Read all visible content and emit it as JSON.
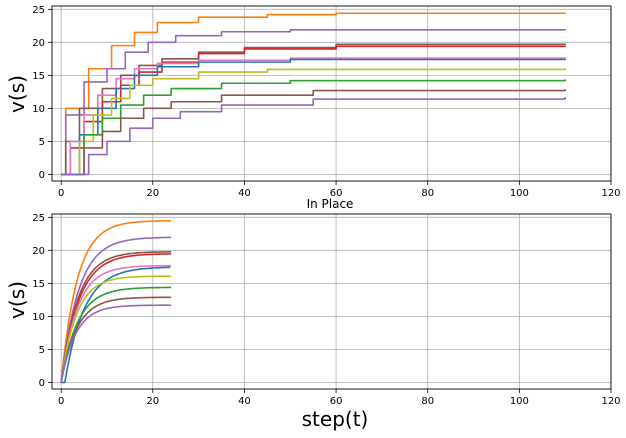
{
  "chart_data": [
    {
      "type": "line",
      "title": "",
      "xlabel": "",
      "ylabel": "v(s)",
      "xlim": [
        -2,
        120
      ],
      "ylim": [
        -1,
        25.5
      ],
      "xticks": [
        0,
        20,
        40,
        60,
        80,
        100,
        120
      ],
      "yticks": [
        0,
        5,
        10,
        15,
        20,
        25
      ],
      "grid": true,
      "legend": "none",
      "mode": "step",
      "series": [
        {
          "color": "#ff7f0e",
          "values": [
            [
              0,
              0
            ],
            [
              1,
              10
            ],
            [
              5,
              10
            ],
            [
              6,
              16
            ],
            [
              10,
              16
            ],
            [
              11,
              19.5
            ],
            [
              15,
              19.5
            ],
            [
              16,
              21.5
            ],
            [
              20,
              21.5
            ],
            [
              21,
              23
            ],
            [
              28,
              23
            ],
            [
              30,
              23.8
            ],
            [
              45,
              24.2
            ],
            [
              60,
              24.4
            ],
            [
              110,
              24.5
            ]
          ]
        },
        {
          "color": "#9467bd",
          "values": [
            [
              0,
              0
            ],
            [
              1,
              9
            ],
            [
              4,
              9
            ],
            [
              5,
              14
            ],
            [
              9,
              14
            ],
            [
              10,
              16
            ],
            [
              13,
              16
            ],
            [
              14,
              18.5
            ],
            [
              18,
              18.5
            ],
            [
              19,
              20
            ],
            [
              24,
              20
            ],
            [
              25,
              21
            ],
            [
              35,
              21.6
            ],
            [
              50,
              21.9
            ],
            [
              110,
              22
            ]
          ]
        },
        {
          "color": "#8c564b",
          "values": [
            [
              0,
              0
            ],
            [
              1,
              5
            ],
            [
              3,
              5
            ],
            [
              4,
              10
            ],
            [
              8,
              10
            ],
            [
              9,
              13
            ],
            [
              12,
              13
            ],
            [
              13,
              15
            ],
            [
              16,
              15
            ],
            [
              17,
              16.5
            ],
            [
              21,
              16.5
            ],
            [
              22,
              17.5
            ],
            [
              30,
              18.5
            ],
            [
              40,
              19.2
            ],
            [
              60,
              19.7
            ],
            [
              110,
              19.8
            ]
          ]
        },
        {
          "color": "#d62728",
          "values": [
            [
              0,
              0
            ],
            [
              2,
              4
            ],
            [
              4,
              4
            ],
            [
              5,
              8
            ],
            [
              8,
              8
            ],
            [
              9,
              11
            ],
            [
              12,
              11
            ],
            [
              13,
              13.5
            ],
            [
              16,
              13.5
            ],
            [
              17,
              15.5
            ],
            [
              21,
              15.5
            ],
            [
              22,
              17
            ],
            [
              30,
              18.3
            ],
            [
              40,
              19
            ],
            [
              60,
              19.4
            ],
            [
              110,
              19.5
            ]
          ]
        },
        {
          "color": "#e377c2",
          "values": [
            [
              0,
              0
            ],
            [
              2,
              5
            ],
            [
              4,
              5
            ],
            [
              5,
              9
            ],
            [
              7,
              9
            ],
            [
              8,
              12
            ],
            [
              11,
              12
            ],
            [
              12,
              14.5
            ],
            [
              15,
              14.5
            ],
            [
              16,
              16
            ],
            [
              20,
              16
            ],
            [
              21,
              16.8
            ],
            [
              30,
              17.3
            ],
            [
              50,
              17.6
            ],
            [
              110,
              17.7
            ]
          ]
        },
        {
          "color": "#1f77b4",
          "values": [
            [
              0,
              0
            ],
            [
              3,
              0
            ],
            [
              4,
              6
            ],
            [
              7,
              6
            ],
            [
              8,
              10
            ],
            [
              11,
              10
            ],
            [
              12,
              13
            ],
            [
              15,
              13
            ],
            [
              16,
              15
            ],
            [
              20,
              15
            ],
            [
              21,
              16.3
            ],
            [
              30,
              17
            ],
            [
              50,
              17.4
            ],
            [
              110,
              17.5
            ]
          ]
        },
        {
          "color": "#bcbd22",
          "values": [
            [
              0,
              0
            ],
            [
              3,
              0
            ],
            [
              4,
              5
            ],
            [
              6,
              5
            ],
            [
              7,
              9
            ],
            [
              10,
              9
            ],
            [
              11,
              11.5
            ],
            [
              14,
              11.5
            ],
            [
              15,
              13.5
            ],
            [
              19,
              13.5
            ],
            [
              20,
              14.5
            ],
            [
              30,
              15.5
            ],
            [
              45,
              15.9
            ],
            [
              110,
              16.1
            ]
          ]
        },
        {
          "color": "#2ca02c",
          "values": [
            [
              0,
              0
            ],
            [
              4,
              0
            ],
            [
              5,
              6
            ],
            [
              8,
              6
            ],
            [
              9,
              8.5
            ],
            [
              12,
              8.5
            ],
            [
              13,
              10.5
            ],
            [
              17,
              10.5
            ],
            [
              18,
              12
            ],
            [
              23,
              12
            ],
            [
              24,
              13
            ],
            [
              35,
              13.8
            ],
            [
              50,
              14.2
            ],
            [
              110,
              14.4
            ]
          ]
        },
        {
          "color": "#8c564b",
          "values": [
            [
              0,
              0
            ],
            [
              4,
              0
            ],
            [
              5,
              4
            ],
            [
              8,
              4
            ],
            [
              9,
              6.5
            ],
            [
              12,
              6.5
            ],
            [
              13,
              8.5
            ],
            [
              17,
              8.5
            ],
            [
              18,
              10
            ],
            [
              23,
              10
            ],
            [
              24,
              11
            ],
            [
              35,
              12
            ],
            [
              55,
              12.7
            ],
            [
              110,
              12.9
            ]
          ]
        },
        {
          "color": "#9467bd",
          "values": [
            [
              0,
              0
            ],
            [
              5,
              0
            ],
            [
              6,
              3
            ],
            [
              9,
              3
            ],
            [
              10,
              5
            ],
            [
              14,
              5
            ],
            [
              15,
              7
            ],
            [
              19,
              7
            ],
            [
              20,
              8.5
            ],
            [
              25,
              8.5
            ],
            [
              26,
              9.5
            ],
            [
              35,
              10.5
            ],
            [
              55,
              11.4
            ],
            [
              110,
              11.7
            ]
          ]
        }
      ]
    },
    {
      "type": "line",
      "title": "In Place",
      "xlabel": "step(t)",
      "ylabel": "v(s)",
      "xlim": [
        -2,
        120
      ],
      "ylim": [
        -1,
        25.5
      ],
      "xticks": [
        0,
        20,
        40,
        60,
        80,
        100,
        120
      ],
      "yticks": [
        0,
        5,
        10,
        15,
        20,
        25
      ],
      "grid": true,
      "legend": "none",
      "mode": "exp",
      "t_end": 24,
      "series": [
        {
          "color": "#ff7f0e",
          "final": 24.5,
          "tau": 3.5
        },
        {
          "color": "#9467bd",
          "final": 22.0,
          "tau": 3.8
        },
        {
          "color": "#8c564b",
          "final": 19.8,
          "tau": 3.6
        },
        {
          "color": "#d62728",
          "final": 19.5,
          "tau": 3.8
        },
        {
          "color": "#e377c2",
          "final": 17.7,
          "tau": 3.5
        },
        {
          "color": "#1f77b4",
          "final": 17.5,
          "tau": 4.2
        },
        {
          "color": "#bcbd22",
          "final": 16.1,
          "tau": 3.3
        },
        {
          "color": "#2ca02c",
          "final": 14.4,
          "tau": 3.6
        },
        {
          "color": "#8c564b",
          "final": 12.9,
          "tau": 3.4
        },
        {
          "color": "#9467bd",
          "final": 11.7,
          "tau": 3.2
        }
      ]
    }
  ]
}
